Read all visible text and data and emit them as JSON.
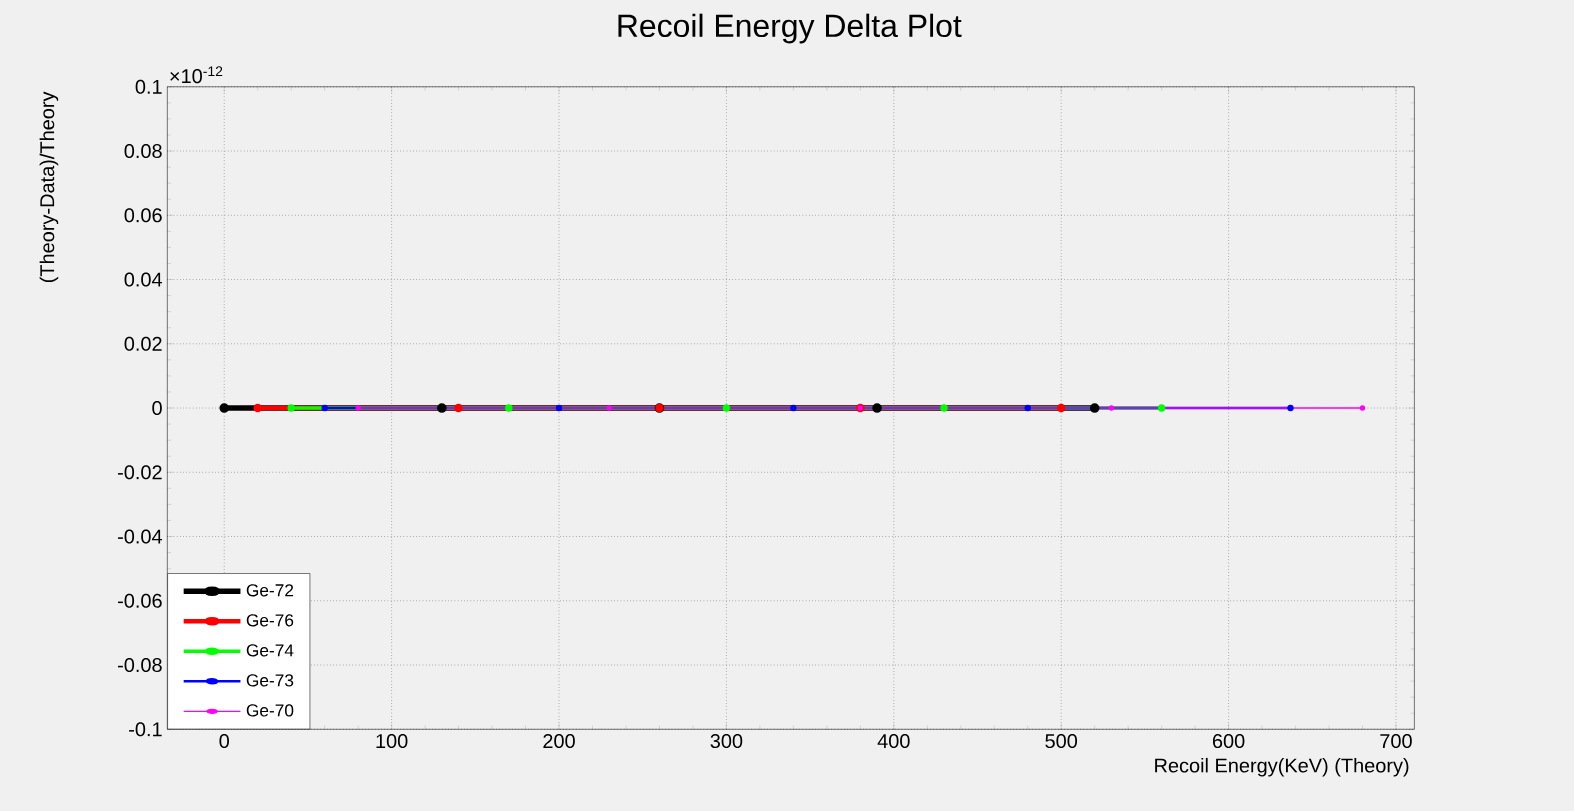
{
  "chart_data": {
    "type": "line",
    "title": "Recoil Energy Delta Plot",
    "xlabel": "Recoil Energy(KeV) (Theory)",
    "ylabel": "(Theory-Data)/Theory",
    "annotations": [
      "×10$^{-12}$"
    ],
    "xlim": [
      -34,
      711
    ],
    "ylim": [
      -0.1,
      0.1
    ],
    "xticks": [
      0,
      100,
      200,
      300,
      400,
      500,
      600,
      700
    ],
    "yticks": [
      -0.1,
      -0.08,
      -0.06,
      -0.04,
      -0.02,
      0,
      0.02,
      0.04,
      0.06,
      0.08,
      0.1
    ],
    "grid": true,
    "legend": "bottom left",
    "marker": "circle",
    "line_style": "solid",
    "series": [
      {
        "name": "Ge-72",
        "color": "#000000",
        "x": [
          0,
          130,
          260,
          390,
          520
        ],
        "values": [
          0,
          0,
          0,
          0,
          0
        ]
      },
      {
        "name": "Ge-76",
        "color": "#ff0000",
        "x": [
          20,
          140,
          260,
          380,
          500
        ],
        "values": [
          0,
          0,
          0,
          0,
          0
        ]
      },
      {
        "name": "Ge-74",
        "color": "#00ff00",
        "x": [
          40,
          170,
          300,
          430,
          560
        ],
        "values": [
          0,
          0,
          0,
          0,
          0
        ]
      },
      {
        "name": "Ge-73",
        "color": "#0000ff",
        "x": [
          60,
          200,
          340,
          480,
          637
        ],
        "values": [
          0,
          0,
          0,
          0,
          0
        ]
      },
      {
        "name": "Ge-70",
        "color": "#ff00ff",
        "x": [
          80,
          230,
          380,
          530,
          680
        ],
        "values": [
          0,
          0,
          0,
          0,
          0
        ]
      }
    ]
  }
}
